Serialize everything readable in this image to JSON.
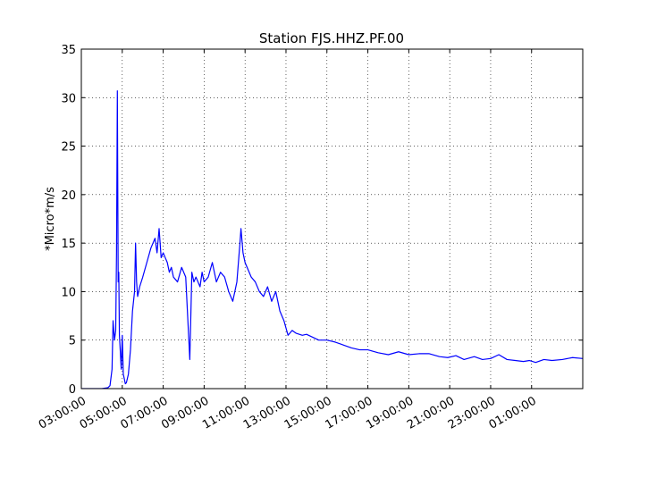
{
  "chart_data": {
    "type": "line",
    "title": "Station FJS.HHZ.PF.00",
    "xlabel": "",
    "ylabel": "*Micro*m/s",
    "x_unit": "hours after 03:00:00",
    "xlim": [
      0,
      24.5
    ],
    "ylim": [
      0,
      35
    ],
    "yticks": [
      0,
      5,
      10,
      15,
      20,
      25,
      30,
      35
    ],
    "xticks": [
      {
        "value": 0,
        "label": "03:00:00"
      },
      {
        "value": 2,
        "label": "05:00:00"
      },
      {
        "value": 4,
        "label": "07:00:00"
      },
      {
        "value": 6,
        "label": "09:00:00"
      },
      {
        "value": 8,
        "label": "11:00:00"
      },
      {
        "value": 10,
        "label": "13:00:00"
      },
      {
        "value": 12,
        "label": "15:00:00"
      },
      {
        "value": 14,
        "label": "17:00:00"
      },
      {
        "value": 16,
        "label": "19:00:00"
      },
      {
        "value": 18,
        "label": "21:00:00"
      },
      {
        "value": 20,
        "label": "23:00:00"
      },
      {
        "value": 22,
        "label": "01:00:00"
      }
    ],
    "grid": true,
    "line_color": "#0000ff",
    "series": [
      {
        "x": [
          0,
          0.5,
          1.0,
          1.3,
          1.4,
          1.5,
          1.55,
          1.62,
          1.68,
          1.72,
          1.76,
          1.8,
          1.83,
          1.86,
          1.9,
          1.95,
          2.0,
          2.05,
          2.1,
          2.15,
          2.2,
          2.3,
          2.4,
          2.5,
          2.6,
          2.65,
          2.7,
          2.75,
          2.85,
          3.0,
          3.2,
          3.4,
          3.6,
          3.7,
          3.8,
          3.9,
          4.0,
          4.1,
          4.2,
          4.3,
          4.4,
          4.5,
          4.7,
          4.9,
          5.1,
          5.3,
          5.4,
          5.5,
          5.6,
          5.7,
          5.8,
          5.9,
          6.0,
          6.2,
          6.4,
          6.6,
          6.8,
          7.0,
          7.2,
          7.4,
          7.6,
          7.75,
          7.8,
          7.9,
          8.0,
          8.1,
          8.3,
          8.5,
          8.7,
          8.9,
          9.1,
          9.3,
          9.5,
          9.7,
          9.9,
          10.1,
          10.3,
          10.5,
          10.8,
          11.0,
          11.3,
          11.6,
          12.0,
          12.4,
          12.8,
          13.2,
          13.6,
          14.0,
          14.5,
          15.0,
          15.5,
          16.0,
          16.5,
          17.0,
          17.5,
          17.9,
          18.3,
          18.7,
          19.2,
          19.6,
          20.0,
          20.4,
          20.8,
          21.2,
          21.6,
          21.9,
          22.2,
          22.6,
          23.0,
          23.5,
          24.0,
          24.5
        ],
        "values": [
          0,
          0,
          0,
          0.1,
          0.3,
          2.0,
          7.0,
          5.0,
          6.0,
          14.0,
          30.7,
          11.0,
          12.0,
          5.5,
          4.0,
          2.0,
          5.5,
          1.5,
          1.0,
          0.5,
          0.6,
          1.5,
          4.0,
          8.0,
          10.0,
          15.0,
          11.0,
          9.5,
          10.5,
          11.5,
          13.0,
          14.5,
          15.5,
          14.0,
          16.5,
          13.5,
          14.0,
          13.5,
          13.0,
          12.0,
          12.5,
          11.5,
          11.0,
          12.5,
          11.5,
          3.0,
          12.0,
          11.0,
          11.5,
          11.0,
          10.5,
          12.0,
          11.0,
          11.5,
          13.0,
          11.0,
          12.0,
          11.5,
          10.0,
          9.0,
          11.0,
          15.0,
          16.5,
          14.0,
          13.0,
          12.5,
          11.5,
          11.0,
          10.0,
          9.5,
          10.5,
          9.0,
          10.0,
          8.0,
          7.0,
          5.5,
          6.0,
          5.7,
          5.5,
          5.6,
          5.3,
          5.0,
          5.0,
          4.8,
          4.5,
          4.2,
          4.0,
          4.0,
          3.7,
          3.5,
          3.8,
          3.5,
          3.6,
          3.6,
          3.3,
          3.2,
          3.4,
          3.0,
          3.3,
          3.0,
          3.1,
          3.5,
          3.0,
          2.9,
          2.8,
          2.9,
          2.7,
          3.0,
          2.9,
          3.0,
          3.2,
          3.1
        ]
      }
    ]
  }
}
